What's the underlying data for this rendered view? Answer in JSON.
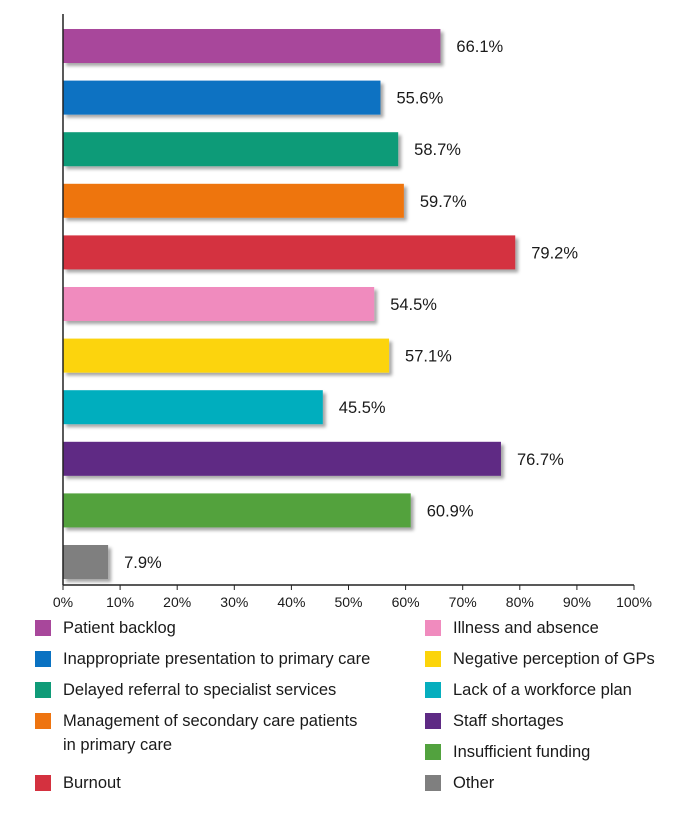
{
  "chart_data": {
    "type": "bar",
    "orientation": "horizontal",
    "categories": [
      "Patient backlog",
      "Inappropriate presentation to primary care",
      "Delayed referral to specialist services",
      "Management of secondary care patients\nin primary care",
      "Burnout",
      "Illness and absence",
      "Negative perception of GPs",
      "Lack of a workforce plan",
      "Staff shortages",
      "Insufficient funding",
      "Other"
    ],
    "values": [
      66.1,
      55.6,
      58.7,
      59.7,
      79.2,
      54.5,
      57.1,
      45.5,
      76.7,
      60.9,
      7.9
    ],
    "value_labels": [
      "66.1%",
      "55.6%",
      "58.7%",
      "59.7%",
      "79.2%",
      "54.5%",
      "57.1%",
      "45.5%",
      "76.7%",
      "60.9%",
      "7.9%"
    ],
    "colors": [
      "#a8479b",
      "#0a72c2",
      "#0f9b78",
      "#ee7410",
      "#d4313f",
      "#f08bbe",
      "#fcd40a",
      "#06aebe",
      "#5e2a84",
      "#52a23e",
      "#7f7f7f"
    ],
    "xlim": [
      0,
      100
    ],
    "xticks": [
      "0%",
      "10%",
      "20%",
      "30%",
      "40%",
      "50%",
      "60%",
      "70%",
      "80%",
      "90%",
      "100%"
    ],
    "legend_position": "bottom",
    "legend_columns": 2,
    "grid": false,
    "title": "",
    "xlabel": "",
    "ylabel": ""
  }
}
